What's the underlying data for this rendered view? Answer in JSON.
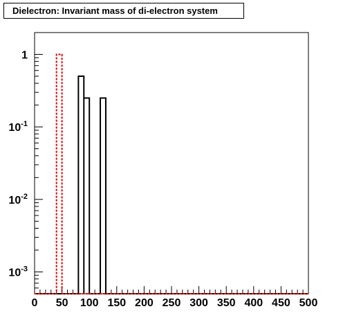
{
  "title": "Dielectron: Invariant mass of di-electron system",
  "chart_data": {
    "type": "step-histogram",
    "title": "Dielectron: Invariant mass of di-electron system",
    "xlabel": "",
    "ylabel": "",
    "x_range": [
      0,
      500
    ],
    "y_scale": "log",
    "y_range": [
      0.0005,
      2
    ],
    "bin_width": 10,
    "x_ticks": [
      "0",
      "50",
      "100",
      "150",
      "200",
      "250",
      "300",
      "350",
      "400",
      "450",
      "500"
    ],
    "y_ticks": [
      {
        "base": "1",
        "exp": "",
        "value": 1
      },
      {
        "base": "10",
        "exp": "-1",
        "value": 0.1
      },
      {
        "base": "10",
        "exp": "-2",
        "value": 0.01
      },
      {
        "base": "10",
        "exp": "-3",
        "value": 0.001
      }
    ],
    "series": [
      {
        "style": "solid",
        "color": "#000000",
        "bins": [
          {
            "x0": 80,
            "x1": 90,
            "y": 0.5
          },
          {
            "x0": 90,
            "x1": 100,
            "y": 0.25
          },
          {
            "x0": 120,
            "x1": 130,
            "y": 0.25
          }
        ]
      },
      {
        "style": "dashed",
        "color": "#dd0000",
        "bins": [
          {
            "x0": 40,
            "x1": 50,
            "y": 1.0
          }
        ]
      }
    ],
    "grid": false,
    "legend": "none"
  }
}
